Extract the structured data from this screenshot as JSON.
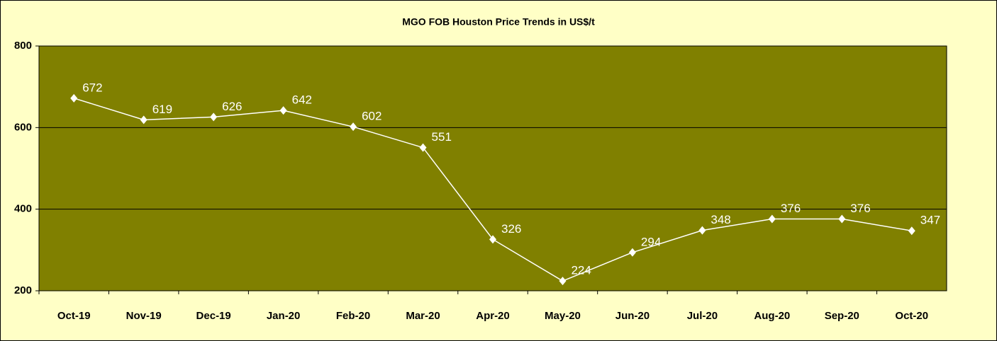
{
  "chart_data": {
    "type": "line",
    "title": "MGO FOB Houston Price Trends in US$/t",
    "categories": [
      "Oct-19",
      "Nov-19",
      "Dec-19",
      "Jan-20",
      "Feb-20",
      "Mar-20",
      "Apr-20",
      "May-20",
      "Jun-20",
      "Jul-20",
      "Aug-20",
      "Sep-20",
      "Oct-20"
    ],
    "series": [
      {
        "name": "MGO FOB Houston",
        "color": "#ffffff",
        "values": [
          672,
          619,
          626,
          642,
          602,
          551,
          326,
          224,
          294,
          348,
          376,
          376,
          347
        ]
      }
    ],
    "ylim": [
      200,
      800
    ],
    "yticks": [
      200,
      400,
      600,
      800
    ],
    "grid": true,
    "plot_color": "#808000"
  }
}
